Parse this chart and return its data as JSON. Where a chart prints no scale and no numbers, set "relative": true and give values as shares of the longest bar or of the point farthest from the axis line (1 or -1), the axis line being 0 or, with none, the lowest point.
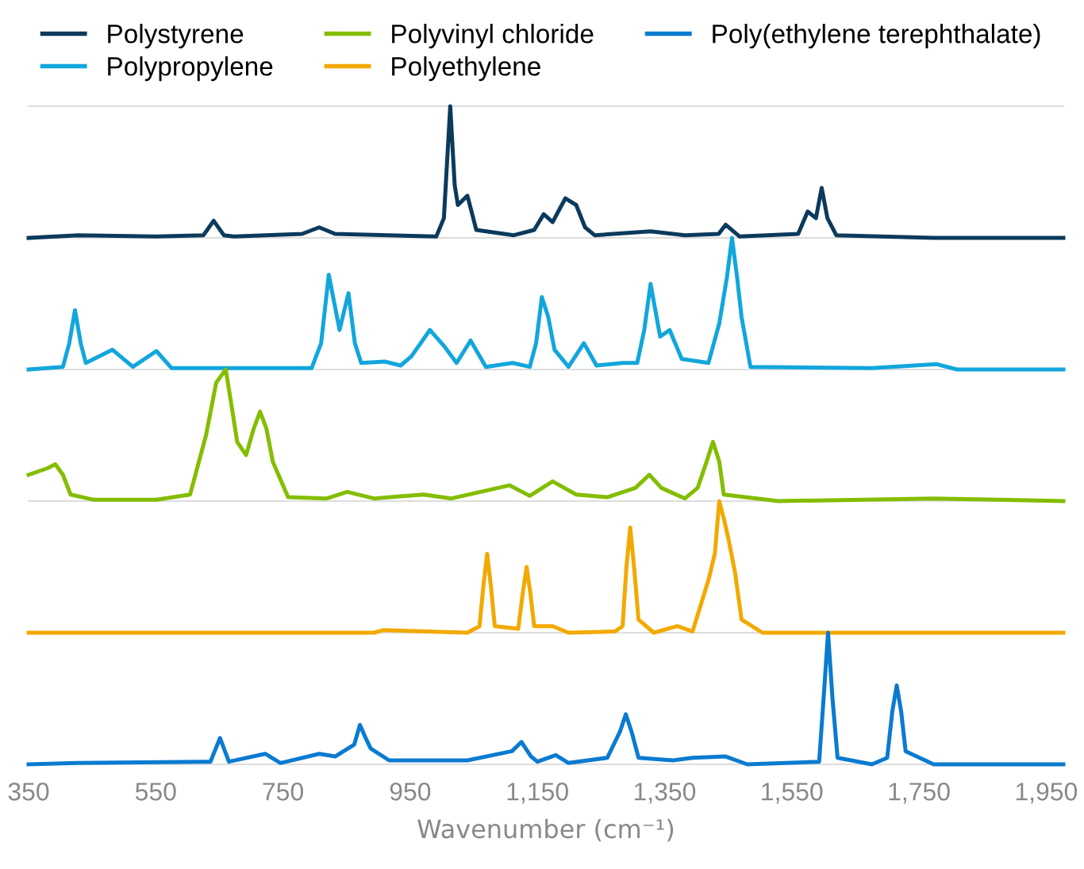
{
  "chart_data": [
    {
      "type": "line",
      "relative": true,
      "xlim": [
        350,
        1977
      ],
      "tick_labels": false,
      "legend": "top",
      "series": [
        {
          "name": "Polystyrene",
          "color": "#0b3a5c",
          "x": [
            350,
            428,
            550,
            625,
            641,
            657,
            673,
            780,
            807,
            832,
            917,
            991,
            1003,
            1013,
            1020,
            1025,
            1040,
            1054,
            1113,
            1145,
            1160,
            1174,
            1185,
            1194,
            1211,
            1225,
            1240,
            1328,
            1382,
            1435,
            1446,
            1468,
            1560,
            1575,
            1588,
            1597,
            1606,
            1620,
            1773,
            1977
          ],
          "values": [
            0,
            0.02,
            0.01,
            0.02,
            0.13,
            0.02,
            0.01,
            0.03,
            0.08,
            0.03,
            0.02,
            0.01,
            0.15,
            1.0,
            0.4,
            0.25,
            0.32,
            0.06,
            0.02,
            0.06,
            0.18,
            0.12,
            0.22,
            0.3,
            0.25,
            0.08,
            0.02,
            0.05,
            0.02,
            0.03,
            0.1,
            0.01,
            0.03,
            0.2,
            0.15,
            0.38,
            0.15,
            0.02,
            0,
            0
          ]
        }
      ]
    },
    {
      "type": "line",
      "relative": true,
      "xlim": [
        350,
        1977
      ],
      "tick_labels": false,
      "legend": "top",
      "series": [
        {
          "name": "Polypropylene",
          "color": "#12a6dc",
          "x": [
            350,
            404,
            414,
            423,
            432,
            440,
            482,
            514,
            551,
            575,
            795,
            810,
            822,
            839,
            853,
            863,
            873,
            910,
            935,
            952,
            981,
            1003,
            1023,
            1045,
            1069,
            1111,
            1138,
            1148,
            1157,
            1167,
            1177,
            1199,
            1223,
            1243,
            1284,
            1307,
            1318,
            1328,
            1343,
            1358,
            1377,
            1419,
            1436,
            1448,
            1456,
            1464,
            1471,
            1485,
            1676,
            1778,
            1810,
            1977
          ],
          "values": [
            0,
            0.02,
            0.2,
            0.45,
            0.2,
            0.05,
            0.15,
            0.02,
            0.14,
            0.01,
            0.01,
            0.2,
            0.72,
            0.3,
            0.58,
            0.2,
            0.05,
            0.06,
            0.03,
            0.1,
            0.3,
            0.18,
            0.05,
            0.22,
            0.02,
            0.05,
            0.02,
            0.2,
            0.55,
            0.4,
            0.15,
            0.02,
            0.2,
            0.03,
            0.05,
            0.05,
            0.3,
            0.65,
            0.25,
            0.3,
            0.08,
            0.05,
            0.35,
            0.7,
            1.0,
            0.7,
            0.4,
            0.02,
            0.01,
            0.04,
            0,
            0
          ]
        }
      ]
    },
    {
      "type": "line",
      "relative": true,
      "xlim": [
        350,
        1977
      ],
      "tick_labels": false,
      "legend": "top",
      "series": [
        {
          "name": "Polyvinyl chloride",
          "color": "#84bd00",
          "x": [
            350,
            380,
            392,
            404,
            416,
            453,
            551,
            604,
            629,
            645,
            660,
            670,
            678,
            692,
            704,
            714,
            724,
            734,
            758,
            819,
            851,
            893,
            971,
            1015,
            1106,
            1138,
            1174,
            1211,
            1260,
            1304,
            1326,
            1345,
            1382,
            1402,
            1416,
            1426,
            1436,
            1443,
            1529,
            1773,
            1977
          ],
          "values": [
            0.2,
            0.25,
            0.28,
            0.2,
            0.05,
            0.01,
            0.01,
            0.05,
            0.5,
            0.9,
            1.0,
            0.7,
            0.45,
            0.35,
            0.55,
            0.68,
            0.55,
            0.3,
            0.03,
            0.02,
            0.07,
            0.02,
            0.05,
            0.02,
            0.12,
            0.04,
            0.15,
            0.05,
            0.03,
            0.1,
            0.2,
            0.1,
            0.02,
            0.1,
            0.3,
            0.45,
            0.3,
            0.05,
            0,
            0.02,
            0
          ]
        }
      ]
    },
    {
      "type": "line",
      "relative": true,
      "xlim": [
        350,
        1977
      ],
      "tick_labels": false,
      "legend": "top",
      "series": [
        {
          "name": "Polyethylene",
          "color": "#f2a900",
          "x": [
            350,
            893,
            908,
            1040,
            1059,
            1065,
            1071,
            1077,
            1083,
            1120,
            1127,
            1133,
            1139,
            1145,
            1174,
            1199,
            1272,
            1284,
            1290,
            1296,
            1302,
            1309,
            1333,
            1370,
            1394,
            1419,
            1429,
            1436,
            1444,
            1451,
            1461,
            1471,
            1504,
            1977
          ],
          "values": [
            0,
            0,
            0.02,
            0,
            0.05,
            0.35,
            0.6,
            0.35,
            0.05,
            0.03,
            0.3,
            0.5,
            0.3,
            0.05,
            0.05,
            0,
            0.01,
            0.05,
            0.5,
            0.8,
            0.5,
            0.1,
            0,
            0.05,
            0.01,
            0.4,
            0.6,
            1.0,
            0.85,
            0.7,
            0.45,
            0.1,
            0,
            0
          ]
        }
      ]
    },
    {
      "type": "line",
      "relative": true,
      "xlim": [
        350,
        1977
      ],
      "xticks": [
        {
          "value": 350,
          "label": "350"
        },
        {
          "value": 550,
          "label": "550"
        },
        {
          "value": 750,
          "label": "750"
        },
        {
          "value": 950,
          "label": "950"
        },
        {
          "value": 1150,
          "label": "1,150"
        },
        {
          "value": 1350,
          "label": "1,350"
        },
        {
          "value": 1550,
          "label": "1,550"
        },
        {
          "value": 1750,
          "label": "1,750"
        },
        {
          "value": 1950,
          "label": "1,950"
        }
      ],
      "xlabel": "Wavenumber (cm⁻¹)",
      "tick_labels": "x",
      "legend": "top",
      "series": [
        {
          "name": "Poly(ethylene terephthalate)",
          "color": "#0a7bd0",
          "x": [
            350,
            428,
            636,
            651,
            665,
            722,
            746,
            807,
            832,
            862,
            871,
            880,
            888,
            917,
            1040,
            1110,
            1125,
            1140,
            1150,
            1179,
            1199,
            1260,
            1280,
            1289,
            1298,
            1309,
            1363,
            1394,
            1446,
            1480,
            1593,
            1600,
            1607,
            1614,
            1622,
            1676,
            1700,
            1708,
            1715,
            1722,
            1729,
            1773,
            1977
          ],
          "values": [
            0,
            0.01,
            0.02,
            0.2,
            0.02,
            0.08,
            0.01,
            0.08,
            0.06,
            0.15,
            0.3,
            0.2,
            0.12,
            0.03,
            0.03,
            0.1,
            0.17,
            0.06,
            0.02,
            0.07,
            0.01,
            0.05,
            0.25,
            0.38,
            0.25,
            0.05,
            0.03,
            0.05,
            0.06,
            0,
            0.02,
            0.5,
            1.0,
            0.5,
            0.05,
            0,
            0.05,
            0.4,
            0.6,
            0.4,
            0.1,
            0,
            0
          ]
        }
      ]
    }
  ]
}
